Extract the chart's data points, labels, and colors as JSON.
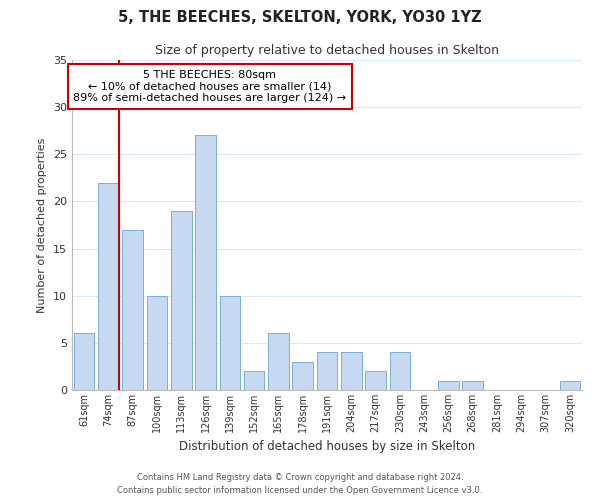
{
  "title1": "5, THE BEECHES, SKELTON, YORK, YO30 1YZ",
  "title2": "Size of property relative to detached houses in Skelton",
  "xlabel": "Distribution of detached houses by size in Skelton",
  "ylabel": "Number of detached properties",
  "bar_labels": [
    "61sqm",
    "74sqm",
    "87sqm",
    "100sqm",
    "113sqm",
    "126sqm",
    "139sqm",
    "152sqm",
    "165sqm",
    "178sqm",
    "191sqm",
    "204sqm",
    "217sqm",
    "230sqm",
    "243sqm",
    "256sqm",
    "268sqm",
    "281sqm",
    "294sqm",
    "307sqm",
    "320sqm"
  ],
  "bar_heights": [
    6,
    22,
    17,
    10,
    19,
    27,
    10,
    2,
    6,
    3,
    4,
    4,
    2,
    4,
    0,
    1,
    1,
    0,
    0,
    0,
    1
  ],
  "bar_color": "#c6d9f0",
  "bar_edge_color": "#7bafd4",
  "highlight_line_color": "#cc0000",
  "annotation_title": "5 THE BEECHES: 80sqm",
  "annotation_line1": "← 10% of detached houses are smaller (14)",
  "annotation_line2": "89% of semi-detached houses are larger (124) →",
  "annotation_box_color": "#ffffff",
  "annotation_box_edge": "#cc0000",
  "ylim": [
    0,
    35
  ],
  "yticks": [
    0,
    5,
    10,
    15,
    20,
    25,
    30,
    35
  ],
  "footer1": "Contains HM Land Registry data © Crown copyright and database right 2024.",
  "footer2": "Contains public sector information licensed under the Open Government Licence v3.0.",
  "background_color": "#ffffff",
  "grid_color": "#d8e8f5"
}
